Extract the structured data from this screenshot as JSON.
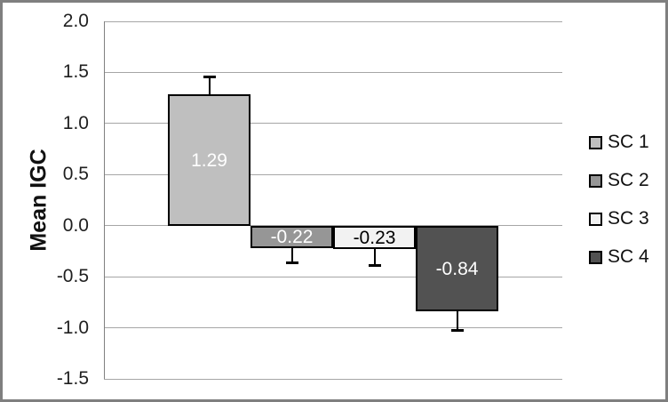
{
  "window": {
    "background": "#ffffff",
    "frame_border_color": "#7f7f7f"
  },
  "chart_data": {
    "type": "bar",
    "title": "",
    "xlabel": "",
    "ylabel": "Mean IGC",
    "categories": [
      "SC 1",
      "SC 2",
      "SC 3",
      "SC 4"
    ],
    "values": [
      1.29,
      -0.22,
      -0.23,
      -0.84
    ],
    "data_labels": [
      "1.29",
      "-0.22",
      "-0.23",
      "-0.84"
    ],
    "error_whisker_ends": [
      1.47,
      -0.38,
      -0.4,
      -1.04
    ],
    "ylim": [
      -1.5,
      2.0
    ],
    "ytick_step": 0.5,
    "ytick_labels": [
      "2.0",
      "1.5",
      "1.0",
      "0.5",
      "0.0",
      "-0.5",
      "-1.0",
      "-1.5"
    ],
    "ytick_values": [
      2.0,
      1.5,
      1.0,
      0.5,
      0.0,
      -0.5,
      -1.0,
      -1.5
    ],
    "grid": true,
    "legend_position": "right",
    "legend": [
      "SC 1",
      "SC 2",
      "SC 3",
      "SC 4"
    ],
    "bar_colors": [
      "#bfbfbf",
      "#969696",
      "#f2f2f2",
      "#525252"
    ],
    "bar_label_colors": [
      "#ffffff",
      "#ffffff",
      "#000000",
      "#ffffff"
    ],
    "bar_border_color": "#000000",
    "gridline_color": "#a6a6a6",
    "axis_line_color": "#808080",
    "error_bar_color": "#000000"
  }
}
